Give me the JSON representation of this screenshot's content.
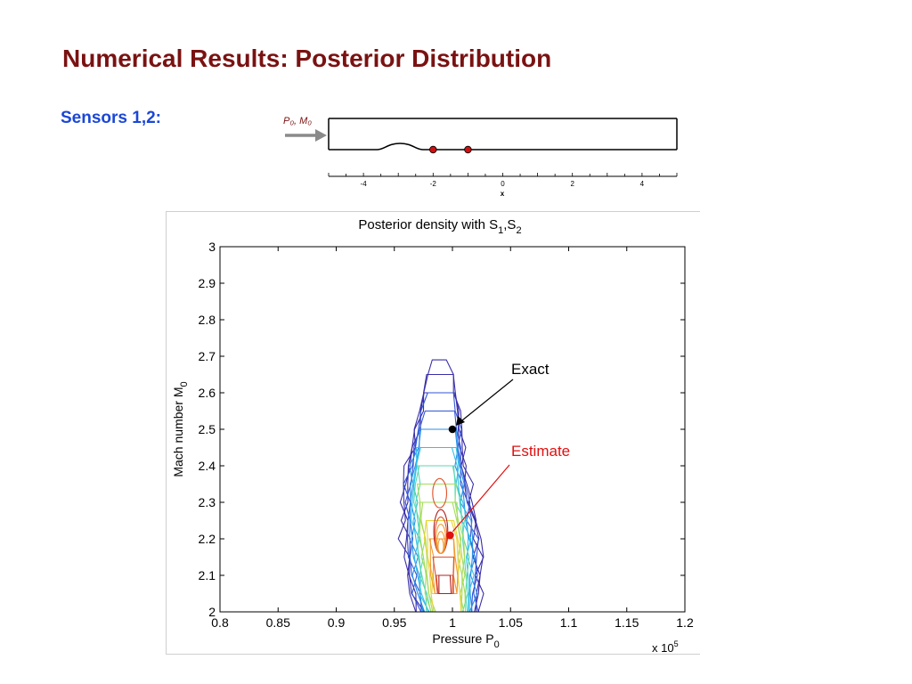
{
  "slide": {
    "title": "Numerical Results: Posterior Distribution",
    "sensors_label": "Sensors 1,2:"
  },
  "schematic": {
    "inlet_label": "P₀, M₀",
    "x_axis_label": "x",
    "x_ticks": [
      -4,
      -2,
      0,
      2,
      4
    ],
    "x_range": [
      -5,
      5
    ],
    "bump_range": [
      -3.6,
      -2.3
    ],
    "sensor_positions": [
      -2,
      -1
    ],
    "sensor_color": "#d01010"
  },
  "chart_data": {
    "type": "contour",
    "title_main": "Posterior density with S",
    "title_sub_1": "1",
    "title_sep": ",S",
    "title_sub_2": "2",
    "xlabel_main": "Pressure P",
    "xlabel_sub": "0",
    "ylabel_main": "Mach number M",
    "ylabel_sub": "0",
    "x_multiplier_base": "x 10",
    "x_multiplier_exp": "5",
    "xlim": [
      0.8,
      1.2
    ],
    "ylim": [
      2,
      3
    ],
    "x_ticks": [
      "0.8",
      "0.85",
      "0.9",
      "0.95",
      "1",
      "1.05",
      "1.1",
      "1.15",
      "1.2"
    ],
    "y_ticks": [
      "2",
      "2.1",
      "2.2",
      "2.3",
      "2.4",
      "2.5",
      "2.6",
      "2.7",
      "2.8",
      "2.9",
      "3"
    ],
    "grid": false,
    "contour_colors": [
      "#3a2ea8",
      "#3355d6",
      "#2b8fe6",
      "#33c0e8",
      "#5ad8b0",
      "#a6dc5a",
      "#e6d43a",
      "#f29a30",
      "#e0502a",
      "#b02020"
    ],
    "posterior_peak": {
      "x": 0.99,
      "y": 2.22
    },
    "posterior_extent": {
      "x": [
        0.965,
        1.03
      ],
      "y": [
        2.0,
        2.69
      ]
    },
    "points": [
      {
        "name": "Exact",
        "x": 1.0,
        "y": 2.5,
        "color": "#000000"
      },
      {
        "name": "Estimate",
        "x": 0.998,
        "y": 2.21,
        "color": "#e01010"
      }
    ],
    "annotations": [
      {
        "label": "Exact",
        "color": "#000000"
      },
      {
        "label": "Estimate",
        "color": "#e01010"
      }
    ]
  }
}
